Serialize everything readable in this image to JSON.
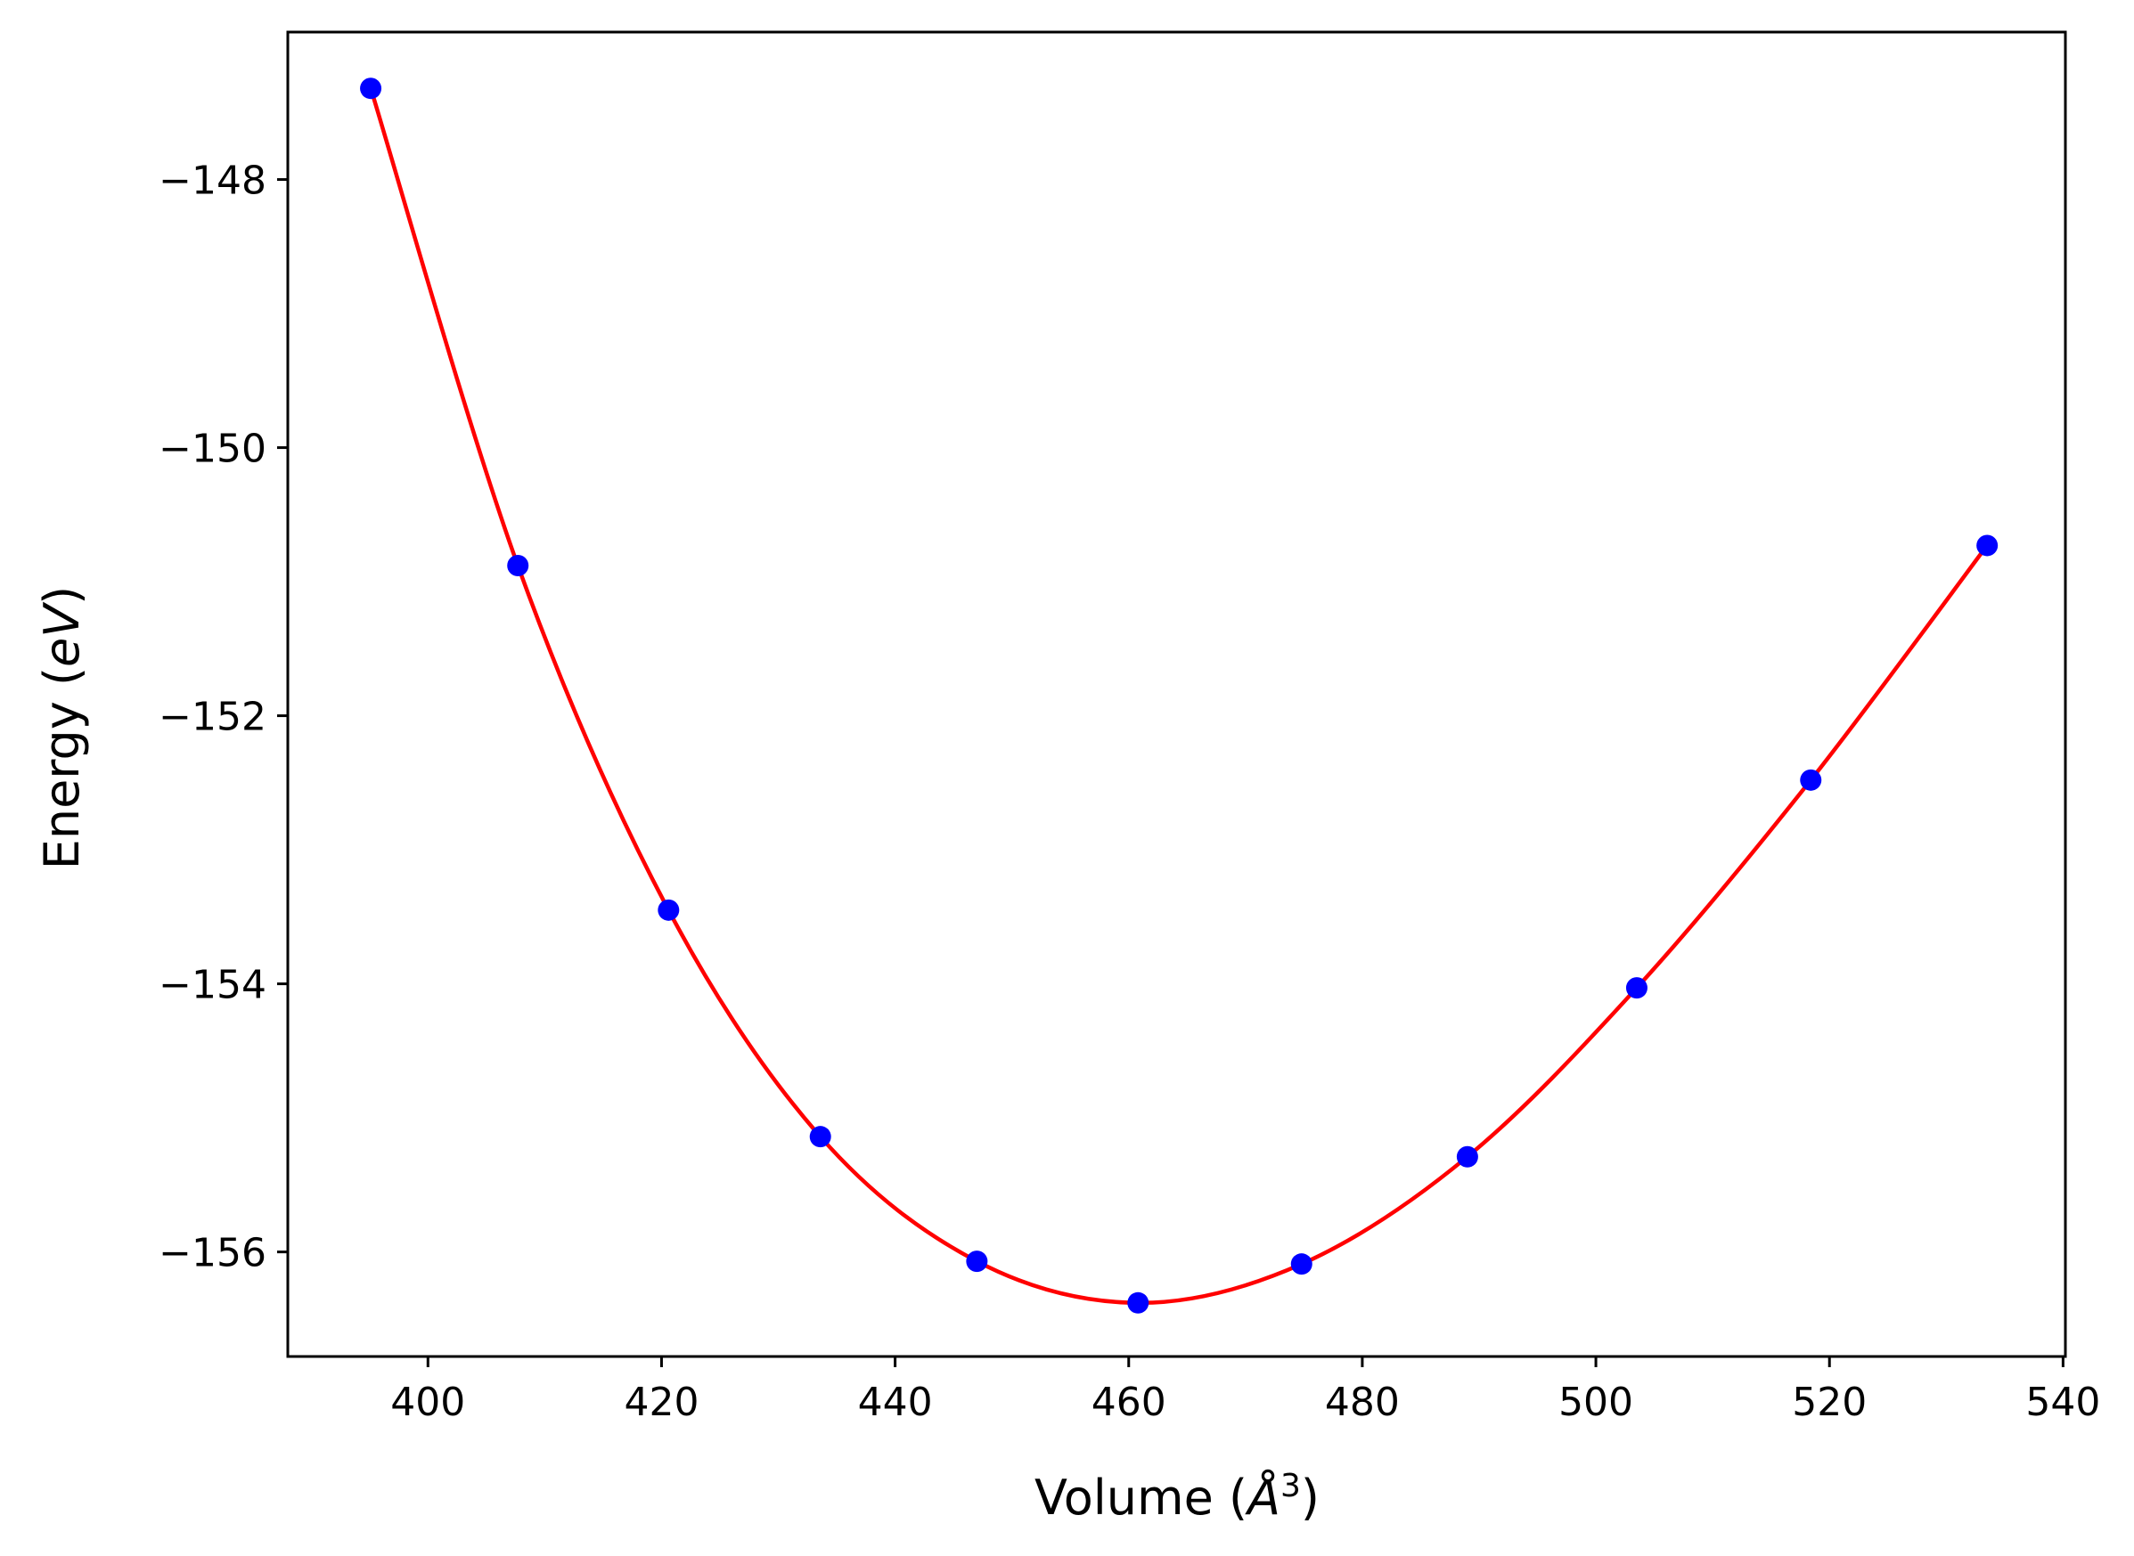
{
  "chart_data": {
    "type": "scatter",
    "xlabel": "Volume (Å³)",
    "xlabel_parts": {
      "prefix": "Volume (",
      "symbol": "Å",
      "power": "3",
      "suffix": ")"
    },
    "ylabel": "Energy (eV)",
    "ylabel_parts": {
      "prefix": "Energy (",
      "unit": "eV",
      "suffix": ")"
    },
    "xlim": [
      388,
      540.2
    ],
    "ylim": [
      -156.78,
      -146.9
    ],
    "xticks": [
      {
        "value": 400,
        "label": "400"
      },
      {
        "value": 420,
        "label": "420"
      },
      {
        "value": 440,
        "label": "440"
      },
      {
        "value": 460,
        "label": "460"
      },
      {
        "value": 480,
        "label": "480"
      },
      {
        "value": 500,
        "label": "500"
      },
      {
        "value": 520,
        "label": "520"
      },
      {
        "value": 540,
        "label": "540"
      }
    ],
    "yticks": [
      {
        "value": -148,
        "label": "−148"
      },
      {
        "value": -150,
        "label": "−150"
      },
      {
        "value": -152,
        "label": "−152"
      },
      {
        "value": -154,
        "label": "−154"
      },
      {
        "value": -156,
        "label": "−156"
      }
    ],
    "grid": false,
    "series": [
      {
        "kind": "points",
        "color": "#0000ff",
        "x": [
          395.1,
          407.7,
          420.6,
          433.6,
          447.0,
          460.8,
          474.8,
          489.0,
          503.5,
          518.4,
          533.5
        ],
        "y": [
          -147.32,
          -150.88,
          -153.45,
          -155.14,
          -156.07,
          -156.38,
          -156.09,
          -155.29,
          -154.03,
          -152.48,
          -150.73
        ]
      },
      {
        "kind": "fit-curve",
        "color": "#ff0000",
        "x": [
          395.1,
          407.7,
          420.6,
          433.6,
          447.0,
          460.8,
          474.8,
          489.0,
          503.5,
          518.4,
          533.5
        ],
        "y": [
          -147.32,
          -150.88,
          -153.45,
          -155.14,
          -156.07,
          -156.38,
          -156.09,
          -155.29,
          -154.03,
          -152.48,
          -150.73
        ]
      }
    ]
  }
}
